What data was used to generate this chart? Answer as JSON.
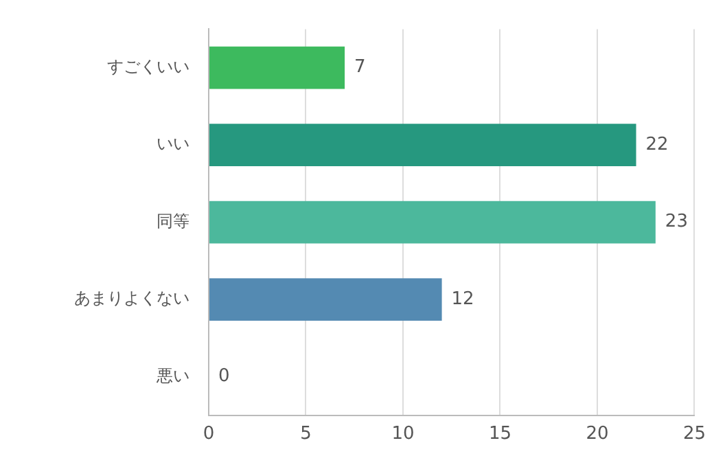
{
  "chart_data": {
    "type": "bar",
    "orientation": "horizontal",
    "categories": [
      "すごくいい",
      "いい",
      "同等",
      "あまりよくない",
      "悪い"
    ],
    "values": [
      7,
      22,
      23,
      12,
      0
    ],
    "colors": [
      "#3dba5e",
      "#26987f",
      "#4cb89c",
      "#548ab2",
      "#7fb8d8"
    ],
    "xlim": [
      0,
      25
    ],
    "xticks": [
      0,
      5,
      10,
      15,
      20,
      25
    ],
    "grid": "x",
    "data_labels": true
  }
}
